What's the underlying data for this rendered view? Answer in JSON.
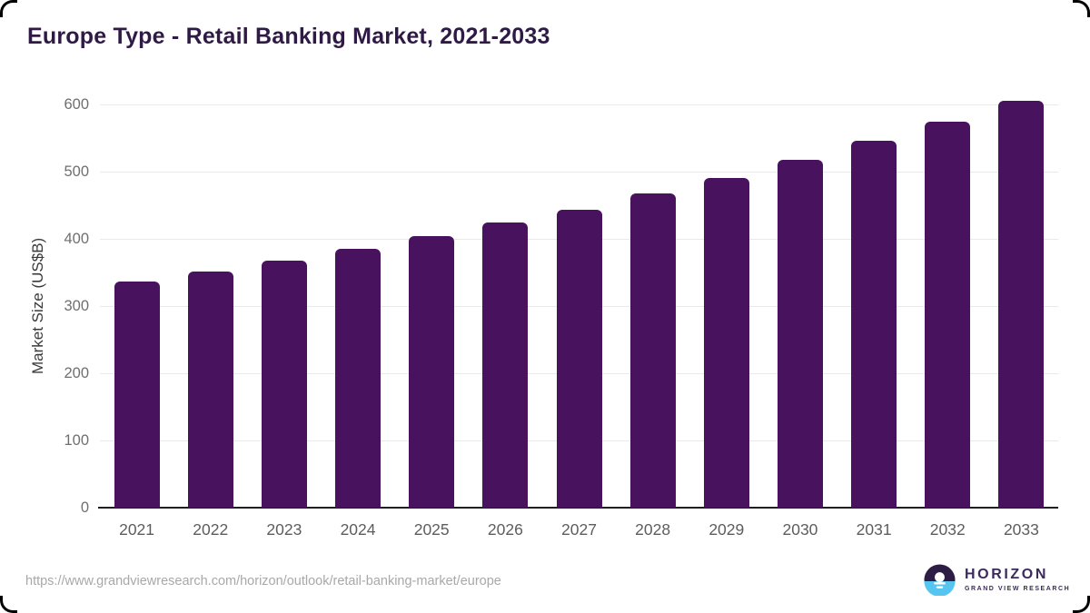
{
  "title": "Europe Type - Retail Banking Market, 2021-2033",
  "chart_data": {
    "type": "bar",
    "categories": [
      "2021",
      "2022",
      "2023",
      "2024",
      "2025",
      "2026",
      "2027",
      "2028",
      "2029",
      "2030",
      "2031",
      "2032",
      "2033"
    ],
    "values": [
      336,
      351,
      367,
      385,
      404,
      424,
      443,
      467,
      491,
      517,
      546,
      574,
      605
    ],
    "title": "Europe Type - Retail Banking Market, 2021-2033",
    "xlabel": "",
    "ylabel": "Market Size (US$B)",
    "ylim": [
      0,
      600
    ],
    "ytick_step": 100,
    "grid": true,
    "legend": "none",
    "bar_color": "#48125e"
  },
  "footer": {
    "source_url": "https://www.grandviewresearch.com/horizon/outlook/retail-banking-market/europe",
    "logo_name": "HORIZON",
    "logo_subtitle": "GRAND VIEW RESEARCH"
  },
  "colors": {
    "bar": "#48125e",
    "title_text": "#2f1a46",
    "gridline": "#e9e9e9",
    "axis_line": "#1f1f1f",
    "y_tick_text": "#6f6f6f",
    "x_tick_text": "#5d5d5d",
    "url_text": "#a8a8a8",
    "logo_purple": "#3b2a5e",
    "logo_circle_dark": "#2d1d44",
    "logo_circle_blue": "#56c6f0"
  }
}
